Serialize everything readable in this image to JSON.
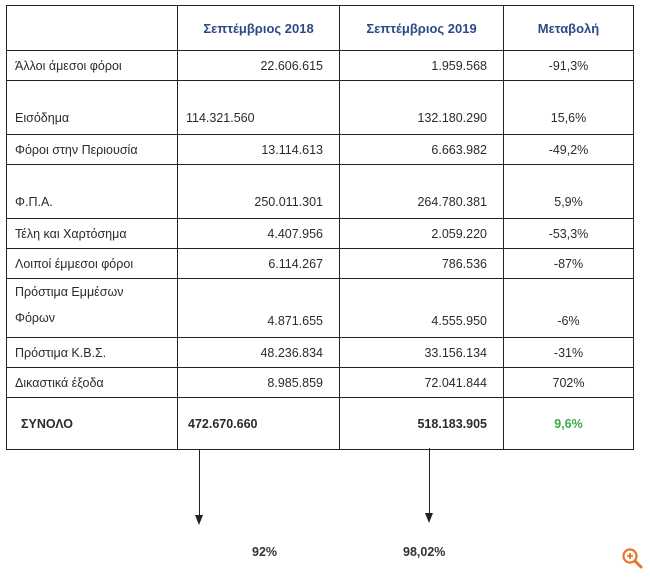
{
  "headers": {
    "col_label": "",
    "col_2018": "Σεπτέμβριος 2018",
    "col_2019": "Σεπτέμβριος 2019",
    "col_change": "Μεταβολή"
  },
  "rows": [
    {
      "label": "Άλλοι άμεσοι φόροι",
      "v2018": "22.606.615",
      "v2019": "1.959.568",
      "change": "-91,3%"
    },
    {
      "label": "Εισόδημα",
      "v2018": "114.321.560",
      "v2019": "132.180.290",
      "change": "15,6%"
    },
    {
      "label": "Φόροι στην Περιουσία",
      "v2018": "13.114.613",
      "v2019": "6.663.982",
      "change": "-49,2%"
    },
    {
      "label": "Φ.Π.Α.",
      "v2018": "250.011.301",
      "v2019": "264.780.381",
      "change": "5,9%"
    },
    {
      "label": "Τέλη και Χαρτόσημα",
      "v2018": "4.407.956",
      "v2019": "2.059.220",
      "change": "-53,3%"
    },
    {
      "label": "Λοιποί έμμεσοι φόροι",
      "v2018": "6.114.267",
      "v2019": "786.536",
      "change": "-87%"
    },
    {
      "label_line1": "Πρόστιμα Εμμέσων",
      "label_line2": "Φόρων",
      "v2018": "4.871.655",
      "v2019": "4.555.950",
      "change": "-6%"
    },
    {
      "label": "Πρόστιμα Κ.Β.Σ.",
      "v2018": "48.236.834",
      "v2019": "33.156.134",
      "change": "-31%"
    },
    {
      "label": "Δικαστικά έξοδα",
      "v2018": "8.985.859",
      "v2019": "72.041.844",
      "change": "702%"
    }
  ],
  "total": {
    "label": "ΣΥΝΟΛΟ",
    "v2018": "472.670.660",
    "v2019": "518.183.905",
    "change": "9,6%"
  },
  "annotations": {
    "pct_2018": "92%",
    "pct_2019": "98,02%"
  },
  "colors": {
    "header": "#2d4a86",
    "positive_total": "#3aaa48",
    "zoom": "#e8742a"
  }
}
